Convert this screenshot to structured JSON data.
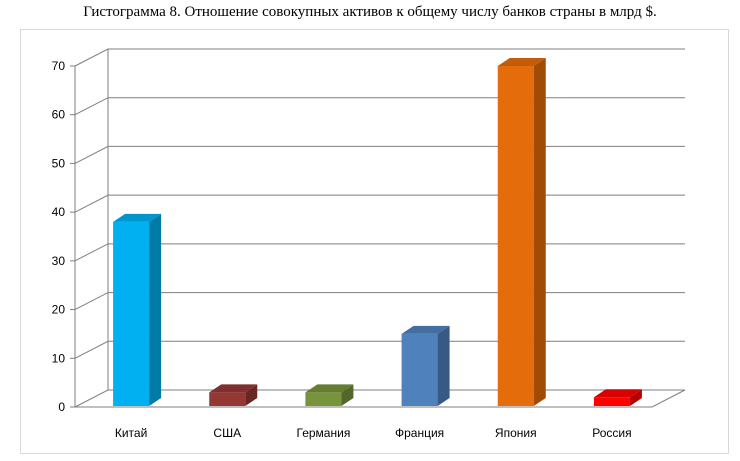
{
  "chart_data": {
    "type": "bar",
    "title": "Гистограмма 8. Отношение совокупных активов к общему числу банков страны в млрд $.",
    "categories": [
      "Китай",
      "США",
      "Германия",
      "Франция",
      "Япония",
      "Россия"
    ],
    "values": [
      38,
      3,
      3,
      15,
      70,
      2
    ],
    "colors": [
      "#00b0f0",
      "#953735",
      "#77933c",
      "#4f81bd",
      "#e46c0a",
      "#ff0000"
    ],
    "yticks": [
      "0",
      "10",
      "20",
      "30",
      "40",
      "50",
      "60",
      "70"
    ],
    "ylim": [
      0,
      70
    ],
    "grid": true,
    "legend": "none",
    "style": "3d-column"
  }
}
